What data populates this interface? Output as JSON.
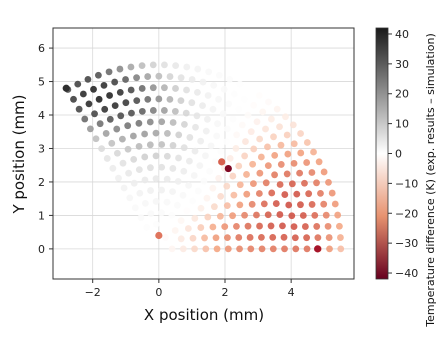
{
  "chart_data": {
    "type": "scatter",
    "title": "",
    "xlabel": "X position (mm)",
    "ylabel": "Y position (mm)",
    "xlim": [
      -3.2,
      5.9
    ],
    "ylim": [
      -0.9,
      6.6
    ],
    "xticks": [
      -2,
      0,
      2,
      4
    ],
    "yticks": [
      0,
      1,
      2,
      3,
      4,
      5,
      6
    ],
    "grid": true,
    "colorbar": {
      "label": "Temperature difference (K) (exp. results – simulation)",
      "range": [
        -42,
        42
      ],
      "ticks": [
        40,
        30,
        20,
        10,
        0,
        -10,
        -20,
        -30,
        -40
      ],
      "colormap": "RdGy",
      "color_high": "#1a1a1a",
      "color_mid": "#ffffff",
      "color_low": "#67001f"
    },
    "region": {
      "shape": "annular sector of sample points",
      "r_min_mm": 0.0,
      "r_max_mm": 5.6,
      "angle_range_deg": [
        0,
        120
      ]
    },
    "notable_points": [
      {
        "x": 2.1,
        "y": 2.4,
        "value": -38
      },
      {
        "x": 1.9,
        "y": 2.6,
        "value": -18
      },
      {
        "x": 0.0,
        "y": 0.4,
        "value": -15
      },
      {
        "x": 4.8,
        "y": 0.0,
        "value": -32
      },
      {
        "x": -2.8,
        "y": 4.8,
        "value": 38
      }
    ],
    "series": [
      {
        "marker": "filled circle"
      }
    ]
  }
}
